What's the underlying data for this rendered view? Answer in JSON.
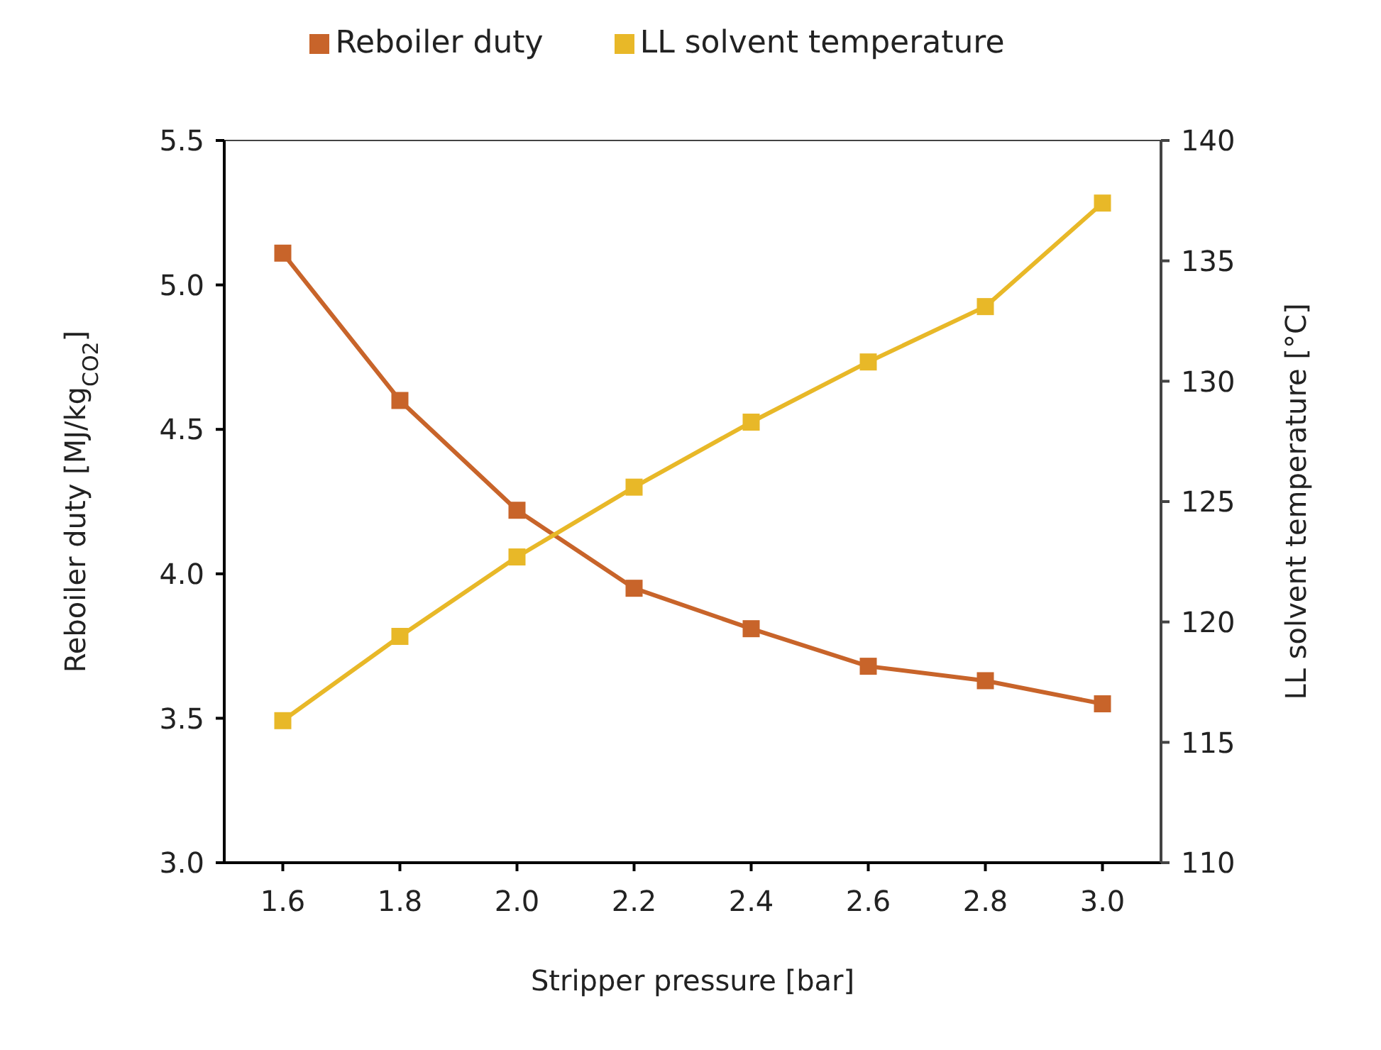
{
  "chart_data": {
    "type": "line",
    "x": [
      1.6,
      1.8,
      2.0,
      2.2,
      2.4,
      2.6,
      2.8,
      3.0
    ],
    "series": [
      {
        "name": "Reboiler duty",
        "color": "#c8642a",
        "values": [
          5.11,
          4.6,
          4.22,
          3.95,
          3.81,
          3.68,
          3.63,
          3.55
        ]
      },
      {
        "name": "LL solvent temperature",
        "color": "#e8b828",
        "axis": "y2",
        "values": [
          115.9,
          119.4,
          122.7,
          125.6,
          128.3,
          130.8,
          133.1,
          137.4
        ]
      }
    ],
    "xlabel": "Stripper pressure [bar]",
    "ylabel": "Reboiler duty [MJ/kg$_{CO2}$]",
    "y2label": "LL solvent temperature [°C]",
    "xlim": [
      1.5,
      3.1
    ],
    "xticks": [
      1.6,
      1.8,
      {
        "value": 2,
        "label": "2.0"
      },
      2.2,
      2.4,
      2.6,
      2.8,
      {
        "value": 3,
        "label": "3.0"
      }
    ],
    "ylim": [
      3.0,
      5.5
    ],
    "yticks": [
      {
        "value": 3,
        "label": "3.0"
      },
      3.5,
      {
        "value": 4,
        "label": "4.0"
      },
      4.5,
      {
        "value": 5,
        "label": "5.0"
      },
      5.5
    ],
    "y2lim": [
      110,
      140
    ],
    "y2ticks": [
      110,
      115,
      120,
      125,
      130,
      135,
      140
    ],
    "legend": "top",
    "grid": false,
    "marker": "square",
    "line_style": "solid"
  }
}
